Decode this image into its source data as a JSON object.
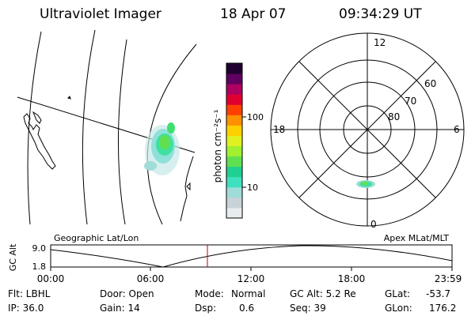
{
  "header": {
    "instrument": "Ultraviolet Imager",
    "date": "18 Apr 07",
    "time": "09:34:29 UT"
  },
  "colorbar": {
    "unit_label": "photon cm⁻²s⁻¹",
    "ticks": [
      "100",
      "10"
    ],
    "colors": [
      "#e8ecef",
      "#c8d3d8",
      "#9fdcd8",
      "#3fe0c0",
      "#20d090",
      "#60e050",
      "#a0f030",
      "#e0f020",
      "#ffd000",
      "#ff9000",
      "#ff4000",
      "#e00030",
      "#b00060",
      "#600060",
      "#200030"
    ]
  },
  "polar_plot": {
    "mlt_labels": {
      "top": "12",
      "left": "18",
      "right": "6",
      "bottom": "0"
    },
    "lat_labels": [
      "60",
      "70",
      "80"
    ]
  },
  "timeline": {
    "left_title": "Geographic Lat/Lon",
    "right_title": "Apex MLat/MLT",
    "y_axis_label": "GC Alt",
    "y_ticks": [
      "9.0",
      "1.8"
    ],
    "x_ticks": [
      "00:00",
      "06:00",
      "12:00",
      "18:00",
      "23:59"
    ],
    "marker_color": "#c00000"
  },
  "info": {
    "col1": [
      "Flt: LBHL",
      "IP: 36.0"
    ],
    "col2": [
      "Door: Open",
      "Gain: 14"
    ],
    "col3_labels": [
      "Mode:",
      "Dsp:"
    ],
    "col3_values": [
      "Normal",
      "0.6"
    ],
    "col4": [
      "GC Alt: 5.2 Re",
      "Seq: 39"
    ],
    "col5_labels": [
      "GLat:",
      "GLon:"
    ],
    "col5_values": [
      "-53.7",
      "176.2"
    ]
  }
}
